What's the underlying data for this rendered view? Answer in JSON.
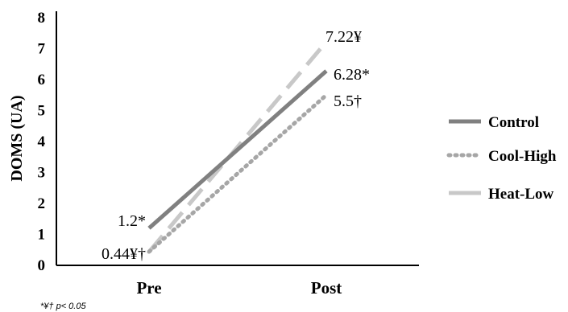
{
  "chart_data": {
    "type": "line",
    "categories": [
      "Pre",
      "Post"
    ],
    "ylabel": "DOMS (UA)",
    "ylim": [
      0,
      8
    ],
    "yticks": [
      "0",
      "1",
      "2",
      "3",
      "4",
      "5",
      "6",
      "7",
      "8"
    ],
    "grid": false,
    "legend_position": "right",
    "series": [
      {
        "name": "Control",
        "values": [
          1.2,
          6.28
        ],
        "labels": [
          "1.2*",
          "6.28*"
        ],
        "color": "#808080",
        "style": "solid"
      },
      {
        "name": "Cool-High",
        "values": [
          0.44,
          5.5
        ],
        "labels": [
          "",
          "5.5†"
        ],
        "color": "#a6a6a6",
        "style": "dotted"
      },
      {
        "name": "Heat-Low",
        "values": [
          0.44,
          7.22
        ],
        "labels": [
          "0.44¥†",
          "7.22¥"
        ],
        "color": "#c8c8c8",
        "style": "dashed"
      }
    ],
    "footnote": "*¥† p< 0.05"
  }
}
